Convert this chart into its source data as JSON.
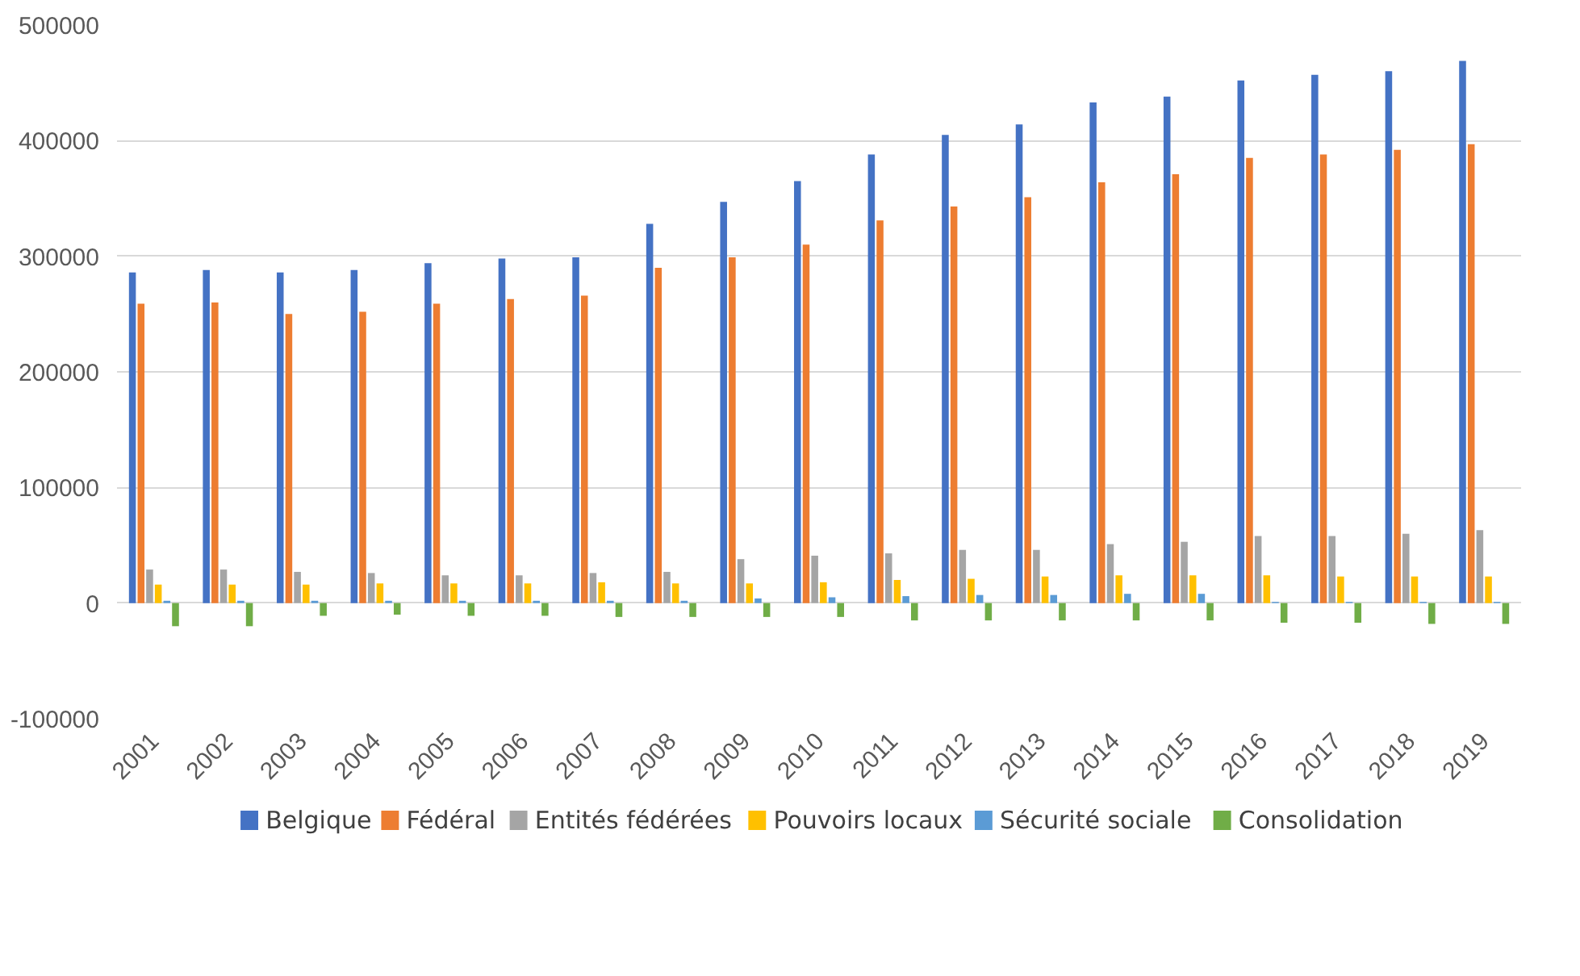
{
  "chart_data": {
    "type": "bar",
    "categories": [
      "2001",
      "2002",
      "2003",
      "2004",
      "2005",
      "2006",
      "2007",
      "2008",
      "2009",
      "2010",
      "2011",
      "2012",
      "2013",
      "2014",
      "2015",
      "2016",
      "2017",
      "2018",
      "2019"
    ],
    "series": [
      {
        "name": "Belgique",
        "color": "#4472c4",
        "values": [
          286000,
          288000,
          286000,
          288000,
          294000,
          298000,
          299000,
          328000,
          347000,
          365000,
          388000,
          405000,
          414000,
          433000,
          438000,
          452000,
          457000,
          460000,
          469000
        ]
      },
      {
        "name": "Fédéral",
        "color": "#ed7d31",
        "values": [
          259000,
          260000,
          250000,
          252000,
          259000,
          263000,
          266000,
          290000,
          299000,
          310000,
          331000,
          343000,
          351000,
          364000,
          371000,
          385000,
          388000,
          392000,
          397000
        ]
      },
      {
        "name": "Entités fédérées",
        "color": "#a5a5a5",
        "values": [
          29000,
          29000,
          27000,
          26000,
          24000,
          24000,
          26000,
          27000,
          38000,
          41000,
          43000,
          46000,
          46000,
          51000,
          53000,
          58000,
          58000,
          60000,
          63000
        ]
      },
      {
        "name": "Pouvoirs locaux",
        "color": "#ffc000",
        "values": [
          16000,
          16000,
          16000,
          17000,
          17000,
          17000,
          18000,
          17000,
          17000,
          18000,
          20000,
          21000,
          23000,
          24000,
          24000,
          24000,
          23000,
          23000,
          23000
        ]
      },
      {
        "name": "Sécurité sociale",
        "color": "#5b9bd5",
        "values": [
          2000,
          2000,
          2000,
          2000,
          2000,
          2000,
          2000,
          2000,
          4000,
          5000,
          6000,
          7000,
          7000,
          8000,
          8000,
          1000,
          1000,
          1000,
          1000
        ]
      },
      {
        "name": "Consolidation",
        "color": "#70ad47",
        "values": [
          -20000,
          -20000,
          -11000,
          -10000,
          -11000,
          -11000,
          -12000,
          -12000,
          -12000,
          -12000,
          -15000,
          -15000,
          -15000,
          -15000,
          -15000,
          -17000,
          -17000,
          -18000,
          -18000
        ]
      }
    ],
    "ylim": [
      -100000,
      500000
    ],
    "yticks": [
      -100000,
      0,
      100000,
      200000,
      300000,
      400000,
      500000
    ],
    "grid": "y",
    "legend": "bottom"
  }
}
